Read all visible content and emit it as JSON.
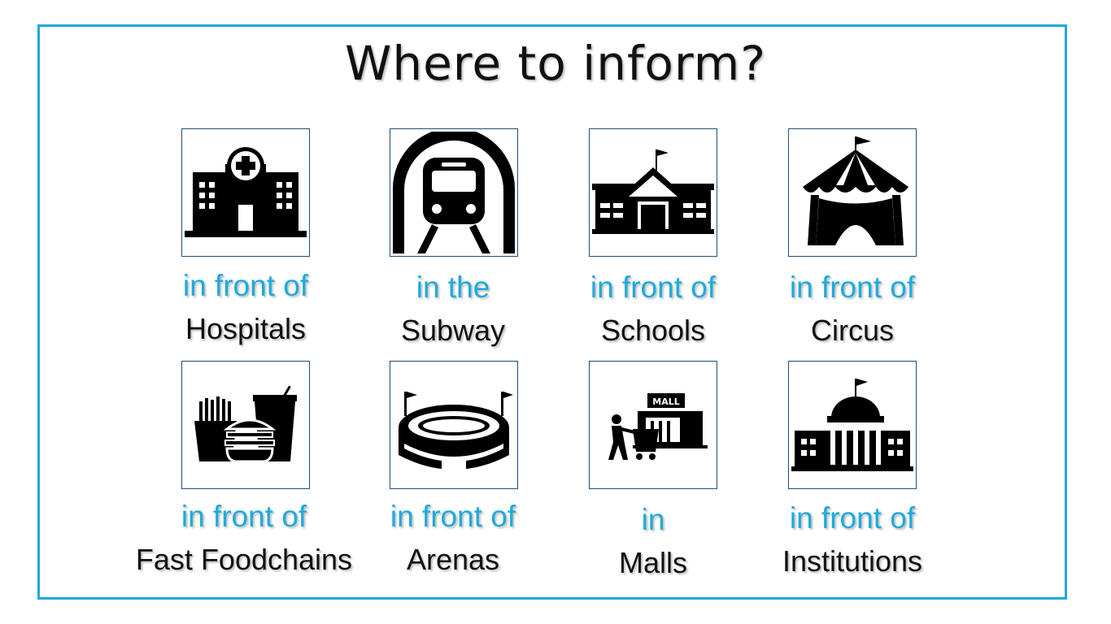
{
  "title": "Where to inform?",
  "accent_color": "#1eaadc",
  "items": [
    {
      "prefix": "in front of",
      "place": "Hospitals",
      "icon": "hospital-icon"
    },
    {
      "prefix": "in the",
      "place": "Subway",
      "icon": "subway-train-icon"
    },
    {
      "prefix": "in front of",
      "place": "Schools",
      "icon": "school-icon"
    },
    {
      "prefix": "in front of",
      "place": "Circus",
      "icon": "circus-tent-icon"
    },
    {
      "prefix": "in front of",
      "place": "Fast Foodchains",
      "icon": "fast-food-icon"
    },
    {
      "prefix": "in front of",
      "place": "Arenas",
      "icon": "arena-stadium-icon"
    },
    {
      "prefix": "in",
      "place": "Malls",
      "icon": "mall-shopping-icon"
    },
    {
      "prefix": "in front of",
      "place": "Institutions",
      "icon": "government-building-icon"
    }
  ],
  "icon_labels": {
    "mall_sign": "MALL"
  }
}
